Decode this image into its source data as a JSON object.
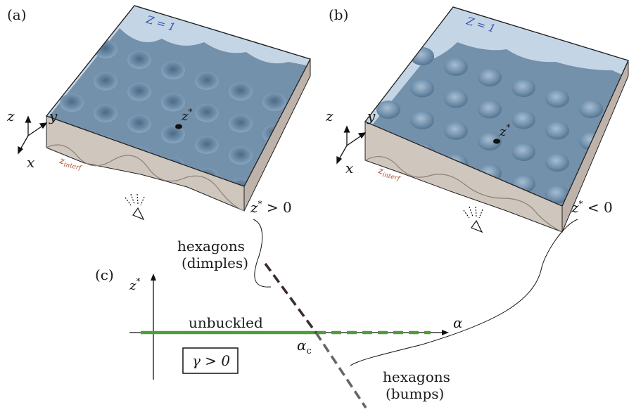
{
  "panels": {
    "a": {
      "tag": "(a)",
      "top_label": "Z = 1",
      "interface_label": "z",
      "interface_sub": "interf",
      "point_label": "z",
      "point_sup": "*",
      "condition": "z* > 0",
      "axes": {
        "z": "z",
        "y": "y",
        "x": "x"
      }
    },
    "b": {
      "tag": "(b)",
      "top_label": "Z = 1",
      "interface_label": "z",
      "interface_sub": "interf",
      "point_label": "z",
      "point_sup": "*",
      "condition": "z* < 0",
      "axes": {
        "z": "z",
        "y": "y",
        "x": "x"
      }
    },
    "c": {
      "tag": "(c)",
      "y_axis_label": "z*",
      "x_axis_label": "α",
      "critical_label": "α",
      "critical_sub": "c",
      "branch_flat": "unbuckled",
      "branch_upper_line1": "hexagons",
      "branch_upper_line2": "(dimples)",
      "branch_lower_line1": "hexagons",
      "branch_lower_line2": "(bumps)",
      "gamma_box": "γ > 0"
    }
  },
  "colors": {
    "sheet": "#6f8ea8",
    "sheet_light": "#9fb6cb",
    "glass": "#c9d8e6",
    "side": "#cdc3bb",
    "green": "#4e9d3c",
    "upper_branch": "#3a2c2c",
    "lower_branch": "#666666",
    "z_label_blue": "#3a52a8",
    "zinterf_color": "#a8502f"
  }
}
